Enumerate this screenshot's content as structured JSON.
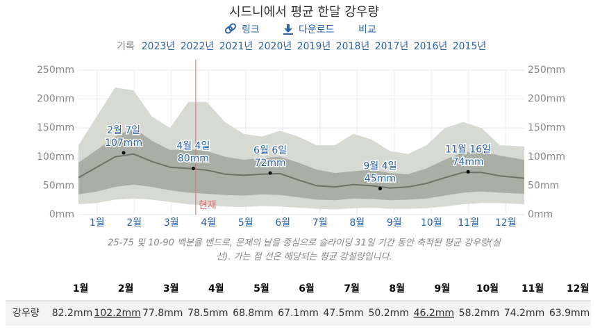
{
  "header": {
    "title": "시드니에서 평균 한달 강우량",
    "links": [
      "링크",
      "다운로드",
      "비교"
    ],
    "history_label": "기록",
    "years": [
      "2023년",
      "2022년",
      "2021년",
      "2020년",
      "2019년",
      "2018년",
      "2017년",
      "2016년",
      "2015년"
    ]
  },
  "chart_data": {
    "type": "band-line",
    "x": [
      0,
      15,
      30,
      45,
      60,
      75,
      90,
      105,
      120,
      135,
      150,
      165,
      180,
      195,
      210,
      225,
      240,
      255,
      270,
      285,
      300,
      315,
      330,
      345,
      365
    ],
    "xlim": [
      0,
      365
    ],
    "months": [
      "1월",
      "2월",
      "3월",
      "4월",
      "5월",
      "6월",
      "7월",
      "8월",
      "9월",
      "10월",
      "11월",
      "12월"
    ],
    "bands": [
      {
        "color": "#d6dad2",
        "low": [
          18,
          20,
          26,
          28,
          26,
          22,
          18,
          16,
          14,
          13,
          15,
          14,
          12,
          10,
          9,
          11,
          12,
          10,
          10,
          11,
          14,
          18,
          20,
          20,
          18
        ],
        "high": [
          120,
          170,
          220,
          215,
          170,
          150,
          195,
          195,
          160,
          140,
          135,
          145,
          135,
          120,
          120,
          140,
          130,
          110,
          105,
          120,
          150,
          160,
          150,
          120,
          118
        ]
      },
      {
        "color": "#a9afa4",
        "low": [
          35,
          40,
          48,
          52,
          48,
          42,
          38,
          36,
          34,
          33,
          35,
          34,
          30,
          26,
          25,
          28,
          27,
          25,
          26,
          28,
          33,
          38,
          40,
          38,
          36
        ],
        "high": [
          90,
          112,
          135,
          150,
          128,
          112,
          113,
          110,
          100,
          95,
          98,
          100,
          90,
          78,
          72,
          75,
          78,
          72,
          70,
          80,
          95,
          108,
          110,
          102,
          95
        ]
      }
    ],
    "line": {
      "color": "#6b7367",
      "values": [
        64,
        82,
        100,
        105,
        92,
        82,
        80,
        77,
        70,
        68,
        70,
        71,
        60,
        50,
        48,
        52,
        50,
        46,
        48,
        54,
        64,
        73,
        73,
        67,
        63
      ]
    },
    "annotations": {
      "x": [
        37,
        94,
        157,
        247,
        319
      ],
      "values": [
        107,
        80,
        72,
        45,
        74
      ],
      "value_labels": [
        "107mm",
        "80mm",
        "72mm",
        "45mm",
        "74mm"
      ],
      "dates": [
        "2월 7일",
        "4월 4일",
        "6월 6일",
        "9월 4일",
        "11월 16일"
      ]
    },
    "today": {
      "x": 96,
      "label": "현재",
      "color": "#e06a6a"
    },
    "ylim": [
      0,
      250
    ],
    "yticks": [
      {
        "value": 0,
        "label": "0mm"
      },
      {
        "value": 50,
        "label": "50mm"
      },
      {
        "value": 100,
        "label": "100mm"
      },
      {
        "value": 150,
        "label": "150mm"
      },
      {
        "value": 200,
        "label": "200mm"
      },
      {
        "value": 250,
        "label": "250mm"
      }
    ],
    "grid": true,
    "caption": [
      "25-75 및 10-90 백분율 밴드로, 문제의 날을 중심으로 슬라이딩 31일 기간 동안 축적된 평균 강우량(실",
      "선). 가는 점 선은 해당되는 평균 강설량입니다."
    ]
  },
  "table": {
    "columns": [
      "1월",
      "2월",
      "3월",
      "4월",
      "5월",
      "6월",
      "7월",
      "8월",
      "9월",
      "10월",
      "11월",
      "12월"
    ],
    "row_label": "강우량",
    "values": [
      "82.2mm",
      "102.2mm",
      "77.8mm",
      "78.5mm",
      "68.8mm",
      "67.1mm",
      "47.5mm",
      "50.2mm",
      "46.2mm",
      "58.2mm",
      "74.2mm",
      "63.9mm"
    ]
  }
}
